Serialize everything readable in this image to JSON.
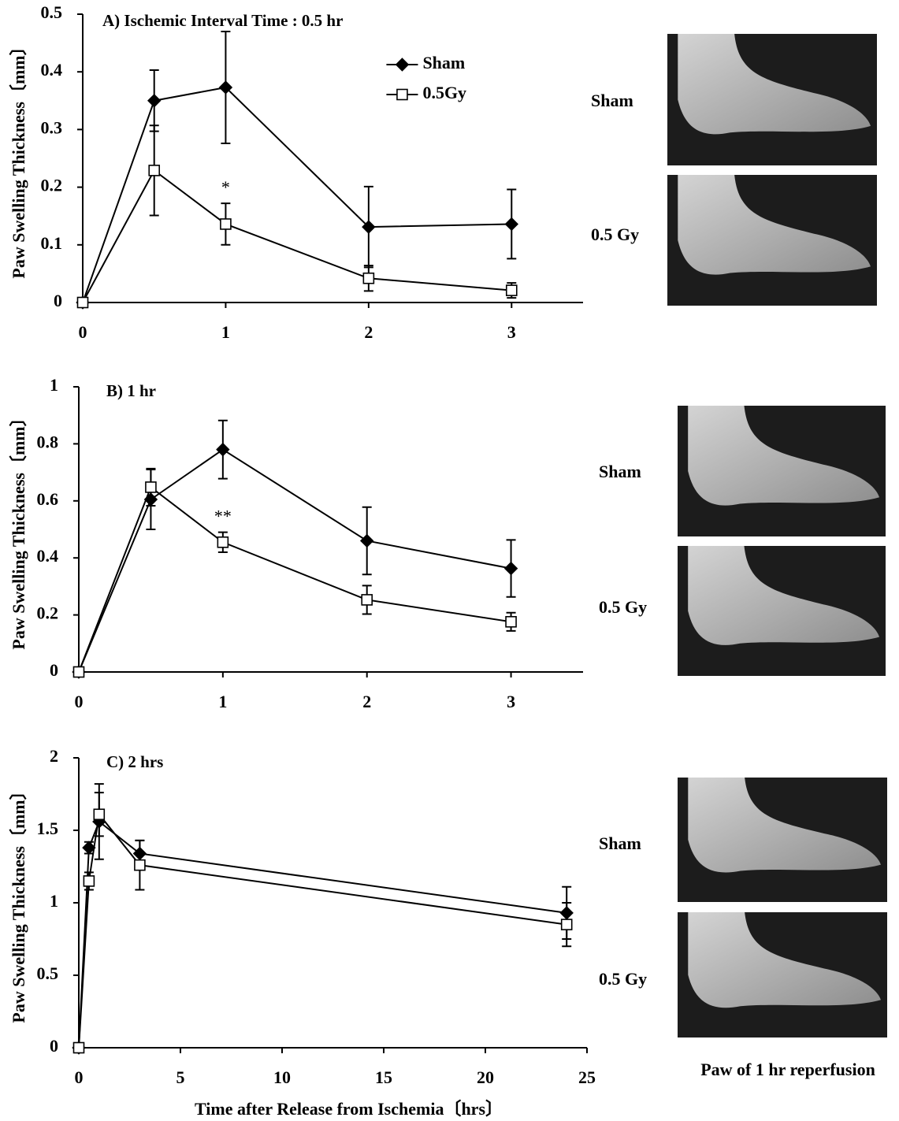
{
  "chart_data": [
    {
      "type": "line",
      "title": "A) Ischemic Interval Time : 0.5 hr",
      "ylabel": "Paw Swelling Thickness〔mm〕",
      "x": [
        0,
        0.5,
        1,
        2,
        3
      ],
      "xlim": [
        0,
        3.5
      ],
      "xticks": [
        0,
        1,
        2,
        3
      ],
      "ylim": [
        0,
        0.5
      ],
      "yticks": [
        0,
        0.1,
        0.2,
        0.3,
        0.4,
        0.5
      ],
      "legend": "top",
      "series": [
        {
          "name": "Sham",
          "color": "#000000",
          "marker": "diamond",
          "values": [
            0,
            0.35,
            0.373,
            0.131,
            0.136
          ],
          "errors": [
            0,
            0.053,
            0.097,
            0.07,
            0.06
          ]
        },
        {
          "name": "0.5Gy",
          "color": "#000000",
          "marker": "square",
          "values": [
            0,
            0.229,
            0.136,
            0.042,
            0.021
          ],
          "errors": [
            0,
            0.078,
            0.036,
            0.022,
            0.013
          ]
        }
      ],
      "annotations": [
        {
          "text": "*",
          "x": 1
        }
      ]
    },
    {
      "type": "line",
      "title": "B) 1 hr",
      "ylabel": "Paw Swelling Thickness〔mm〕",
      "x": [
        0,
        0.5,
        1,
        2,
        3
      ],
      "xlim": [
        0,
        3.5
      ],
      "xticks": [
        0,
        1,
        2,
        3
      ],
      "ylim": [
        0,
        1
      ],
      "yticks": [
        0,
        0.2,
        0.4,
        0.6,
        0.8,
        1
      ],
      "series": [
        {
          "color": "#000000",
          "marker": "diamond",
          "values": [
            0,
            0.605,
            0.78,
            0.46,
            0.363
          ],
          "errors": [
            0,
            0.105,
            0.102,
            0.118,
            0.1
          ]
        },
        {
          "color": "#000000",
          "marker": "square",
          "values": [
            0,
            0.648,
            0.455,
            0.253,
            0.176
          ],
          "errors": [
            0,
            0.065,
            0.035,
            0.05,
            0.032
          ]
        }
      ],
      "annotations": [
        {
          "text": "**",
          "x": 1
        }
      ]
    },
    {
      "type": "line",
      "title": "C) 2 hrs",
      "ylabel": "Paw Swelling Thickness〔mm〕",
      "xlabel": "Time after Release from Ischemia〔hrs〕",
      "x": [
        0,
        0.5,
        1,
        3,
        24
      ],
      "xlim": [
        0,
        25
      ],
      "xticks": [
        0,
        5,
        10,
        15,
        20,
        25
      ],
      "ylim": [
        0,
        2
      ],
      "yticks": [
        0,
        0.5,
        1,
        1.5,
        2
      ],
      "series": [
        {
          "color": "#000000",
          "marker": "diamond",
          "values": [
            0,
            1.38,
            1.56,
            1.34,
            0.93
          ],
          "errors": [
            0,
            0.04,
            0.26,
            0.09,
            0.18
          ]
        },
        {
          "color": "#000000",
          "marker": "square",
          "values": [
            0,
            1.15,
            1.61,
            1.26,
            0.85
          ],
          "errors": [
            0,
            0.06,
            0.15,
            0.17,
            0.15
          ]
        }
      ]
    }
  ],
  "photos": {
    "panels": [
      {
        "labels": [
          "Sham",
          "0.5 Gy"
        ]
      },
      {
        "labels": [
          "Sham",
          "0.5 Gy"
        ]
      },
      {
        "labels": [
          "Sham",
          "0.5 Gy"
        ]
      }
    ],
    "caption": "Paw of 1 hr reperfusion"
  }
}
